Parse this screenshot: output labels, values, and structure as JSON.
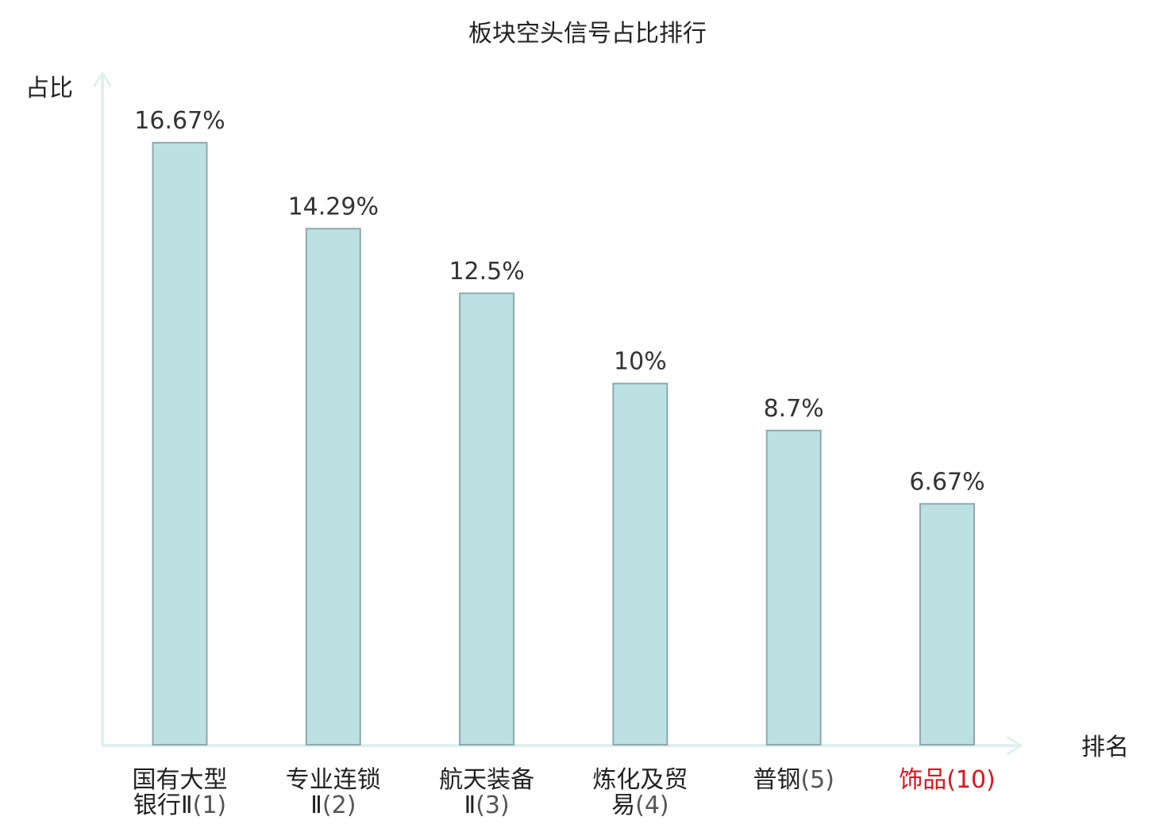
{
  "chart_data": {
    "type": "bar",
    "title": "板块空头信号占比排行",
    "ylabel": "占比",
    "xlabel": "排名",
    "unit": "%",
    "ylim": [
      0,
      18.6
    ],
    "grid": false,
    "legend": "none",
    "categories": [
      {
        "name_lines": [
          "国有大型",
          "银行Ⅱ"
        ],
        "rank": "(1)",
        "highlight": false
      },
      {
        "name_lines": [
          "专业连锁",
          "Ⅱ"
        ],
        "rank": "(2)",
        "highlight": false
      },
      {
        "name_lines": [
          "航天装备",
          "Ⅱ"
        ],
        "rank": "(3)",
        "highlight": false
      },
      {
        "name_lines": [
          "炼化及贸",
          "易"
        ],
        "rank": "(4)",
        "highlight": false
      },
      {
        "name_lines": [
          "普钢"
        ],
        "rank": "(5)",
        "highlight": false
      },
      {
        "name_lines": [
          "饰品"
        ],
        "rank": "(10)",
        "highlight": true
      }
    ],
    "values": [
      16.67,
      14.29,
      12.5,
      10,
      8.7,
      6.67
    ],
    "value_labels": [
      "16.67%",
      "14.29%",
      "12.5%",
      "10%",
      "8.7%",
      "6.67%"
    ]
  },
  "colors": {
    "bar_fill": "#bde0e3",
    "bar_stroke": "#8ea9ac",
    "axis": "#dff0ee",
    "text": "#222222",
    "value_text": "#333333",
    "rank_text": "#555555",
    "highlight_text": "#e0141b"
  }
}
